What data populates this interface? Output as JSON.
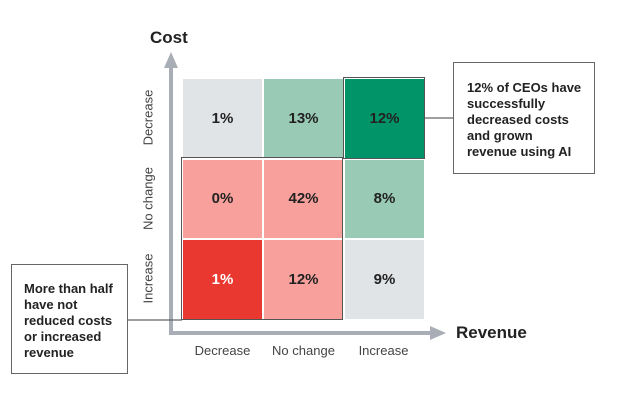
{
  "chart_data": {
    "type": "heatmap",
    "xlabel": "Revenue",
    "ylabel": "Cost",
    "x_categories": [
      "Decrease",
      "No change",
      "Increase"
    ],
    "y_categories": [
      "Decrease",
      "No change",
      "Increase"
    ],
    "cells": [
      [
        {
          "value": "1%",
          "color": "#e1e4e7",
          "text": "#222"
        },
        {
          "value": "13%",
          "color": "#98cab6",
          "text": "#222"
        },
        {
          "value": "12%",
          "color": "#009468",
          "text": "#222"
        }
      ],
      [
        {
          "value": "0%",
          "color": "#f8a19c",
          "text": "#222"
        },
        {
          "value": "42%",
          "color": "#f8a19c",
          "text": "#222"
        },
        {
          "value": "8%",
          "color": "#98cab6",
          "text": "#222"
        }
      ],
      [
        {
          "value": "1%",
          "color": "#e8382f",
          "text": "#fff"
        },
        {
          "value": "12%",
          "color": "#f8a19c",
          "text": "#222"
        },
        {
          "value": "9%",
          "color": "#e1e4e7",
          "text": "#222"
        }
      ]
    ],
    "annotations": [
      "12% of CEOs have successfully decreased costs and grown revenue using AI",
      "More than half have not reduced costs or increased revenue"
    ]
  }
}
